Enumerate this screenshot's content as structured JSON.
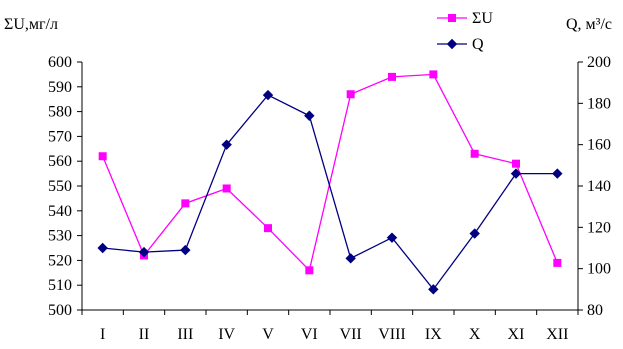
{
  "chart_data": {
    "type": "line",
    "categories": [
      "I",
      "II",
      "III",
      "IV",
      "V",
      "VI",
      "VII",
      "VIII",
      "IX",
      "X",
      "XI",
      "XII"
    ],
    "series": [
      {
        "name": "ΣU",
        "axis": "left",
        "color": "#ff00ff",
        "marker": "square",
        "values": [
          562,
          522,
          543,
          549,
          533,
          516,
          587,
          594,
          595,
          563,
          559,
          519
        ]
      },
      {
        "name": "Q",
        "axis": "right",
        "color": "#000080",
        "marker": "diamond",
        "values": [
          110,
          108,
          109,
          160,
          184,
          174,
          105,
          115,
          90,
          117,
          146,
          146
        ]
      }
    ],
    "ylabel_left": "ΣU,мг/л",
    "ylabel_right": "Q, м³/с",
    "ylim_left": [
      500,
      600
    ],
    "ylim_right": [
      80,
      200
    ],
    "yticks_left": [
      "500",
      "510",
      "520",
      "530",
      "540",
      "550",
      "560",
      "570",
      "580",
      "590",
      "600"
    ],
    "yticks_right": [
      "80",
      "100",
      "120",
      "140",
      "160",
      "180",
      "200"
    ],
    "grid": false,
    "legend_placement": "top-right"
  }
}
